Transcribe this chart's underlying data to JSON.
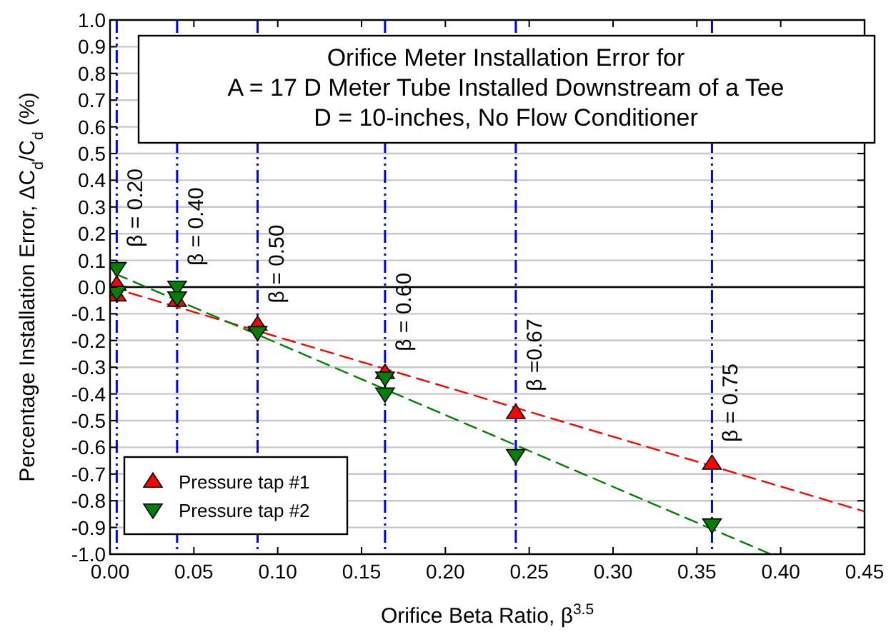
{
  "chart_data": {
    "type": "scatter",
    "title": "Orifice Meter Installation Error for\nA = 17 D Meter Tube Installed Downstream of a Tee\nD = 10-inches, No Flow Conditioner",
    "xlabel": "Orifice Beta Ratio, β$^{3.5}$",
    "ylabel": "Percentage Installation Error, ΔC$_{d}$/C$_{d}$ (%)",
    "xlim": [
      0,
      0.45
    ],
    "xticks": [
      {
        "value": 0,
        "label": "0.00"
      },
      0.05,
      {
        "value": 0.1,
        "label": "0.10"
      },
      0.15,
      {
        "value": 0.2,
        "label": "0.20"
      },
      0.25,
      {
        "value": 0.3,
        "label": "0.30"
      },
      0.35,
      {
        "value": 0.4,
        "label": "0.40"
      },
      0.45
    ],
    "ylim": [
      -1,
      1
    ],
    "yticks": [
      {
        "value": -1,
        "label": "-1.0"
      },
      -0.9,
      -0.8,
      -0.7,
      -0.6,
      -0.5,
      -0.4,
      -0.3,
      -0.2,
      -0.1,
      {
        "value": 0,
        "label": "0.0"
      },
      0.1,
      0.2,
      0.3,
      0.4,
      0.5,
      0.6,
      0.7,
      0.8,
      0.9,
      {
        "value": 1,
        "label": "1.0"
      }
    ],
    "grid": "y",
    "legend": "bottom left",
    "series": [
      {
        "name": "Pressure tap #1",
        "color": "#ff0000",
        "marker": "triangle",
        "x": [
          0.004,
          0.004,
          0.04,
          0.088,
          0.164,
          0.242,
          0.359
        ],
        "values": [
          0.01,
          -0.03,
          -0.05,
          -0.14,
          -0.32,
          -0.47,
          -0.66
        ]
      },
      {
        "name": "Pressure tap #2",
        "color": "#008000",
        "marker": "triangle-down",
        "x": [
          0.004,
          0.004,
          0.04,
          0.04,
          0.088,
          0.164,
          0.164,
          0.242,
          0.359
        ],
        "values": [
          0.07,
          -0.02,
          0.0,
          -0.04,
          -0.17,
          -0.34,
          -0.4,
          -0.63,
          -0.89
        ]
      },
      {
        "type": "line",
        "color": "#ff0000",
        "line_style": "dashed",
        "marker": "none",
        "x": [
          0,
          0.45
        ],
        "values": [
          0,
          -0.84
        ]
      },
      {
        "type": "line",
        "color": "#008000",
        "line_style": "dashed",
        "marker": "none",
        "x": [
          0.003,
          0.394
        ],
        "values": [
          0.05,
          -1.0
        ]
      }
    ],
    "ref_lines": [
      {
        "axis": "y",
        "value": 0,
        "color": "#000000",
        "line_style": "solid"
      },
      {
        "axis": "x",
        "value": 0.004,
        "color": "#0000ff",
        "line_style": "dashdot"
      },
      {
        "axis": "x",
        "value": 0.04,
        "color": "#0000ff",
        "line_style": "dashdot"
      },
      {
        "axis": "x",
        "value": 0.088,
        "color": "#0000ff",
        "line_style": "dashdot"
      },
      {
        "axis": "x",
        "value": 0.164,
        "color": "#0000ff",
        "line_style": "dashdot"
      },
      {
        "axis": "x",
        "value": 0.242,
        "color": "#0000ff",
        "line_style": "dashdot"
      },
      {
        "axis": "x",
        "value": 0.359,
        "color": "#0000ff",
        "line_style": "dashdot"
      }
    ],
    "annotations": [
      {
        "text": "β = 0.20",
        "x": 0.004,
        "y": 0.15
      },
      {
        "text": "β = 0.40",
        "x": 0.04,
        "y": 0.08
      },
      {
        "text": "β = 0.50",
        "x": 0.088,
        "y": -0.06
      },
      {
        "text": "β = 0.60",
        "x": 0.164,
        "y": -0.24
      },
      {
        "text": "β =0.67",
        "x": 0.242,
        "y": -0.39
      },
      {
        "text": "β = 0.75",
        "x": 0.359,
        "y": -0.58
      }
    ]
  }
}
